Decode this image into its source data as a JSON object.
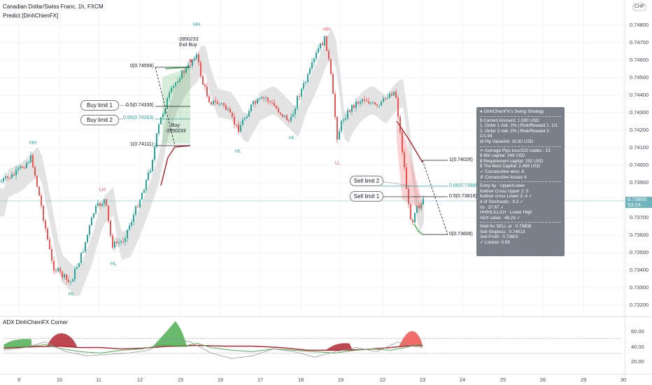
{
  "header": {
    "symbol_title": "Canadian Dollar/Swiss Franc, 1h, FXCM",
    "indicator": "Predict [DinhChienFX]"
  },
  "price_axis": {
    "currency_button": "CHF",
    "ticks": [
      "0.74800",
      "0.74700",
      "0.74600",
      "0.74500",
      "0.74400",
      "0.74300",
      "0.74200",
      "0.74100",
      "0.74000",
      "0.73900",
      "0.73700",
      "0.73600",
      "0.73500",
      "0.73400",
      "0.73300",
      "0.73200"
    ],
    "current_price": "0.73800",
    "countdown": "53:24"
  },
  "adx_pane": {
    "label": "ADX DinhChienFX Corner",
    "ticks": [
      "60.00",
      "40.00",
      "20.00"
    ]
  },
  "time_axis": {
    "ticks": [
      "9",
      "10",
      "11",
      "12",
      "15",
      "16",
      "17",
      "18",
      "19",
      "22",
      "23",
      "24",
      "25",
      "26",
      "29",
      "30"
    ]
  },
  "fib_buy": {
    "level_0": "0(0.74558)",
    "level_05": "0.5(0.74335)",
    "level_066": "0.66(0.74263)",
    "level_1": "1(0.74111)",
    "callout_1": "Buy limit 1",
    "callout_2": "Buy limit 2",
    "exit_note": "-2850233\nExit Buy",
    "buy_note": "Buy\n-2850233"
  },
  "fib_sell": {
    "level_1": "1(0.74026)",
    "level_066": "0.66(0.73888)",
    "level_05": "0.5(0.73816)",
    "level_0": "0(0.73606)",
    "callout_1": "Sell limit 1",
    "callout_2": "Sell limit 2"
  },
  "pivots": {
    "hh1": "HH",
    "hh2": "HH",
    "hh3": "HH",
    "lh1": "LH",
    "lh2": "LH",
    "hl1": "HL",
    "hl2": "HL",
    "hl3": "HL",
    "hl4": "HL",
    "ll1": "LL"
  },
  "strategy": {
    "title": "DinhChienFX's Swing Strategy",
    "lines_1": [
      "$ Current Account: 1,000 USD",
      "1. Order 1 risk: 2% | Risk/Reward 1: 1/1",
      "2. Order 2 risk: 2% | Risk/Reward 2: 1/1.94",
      "⊟ Pip Value/lot: 10.82 USD"
    ],
    "lines_2": [
      "✂ Average Pips loss/222 trades : 23",
      "$ Min capital: 249 USD",
      "$ Requirement capital: 292 USD",
      "$ The Best Capital: 2,488 USD",
      "✓ Consecutive wins: 6",
      "✗ Consecutive losses 4"
    ],
    "lines_3": [
      "Entry by : Upper/Lower",
      "Keltner Cross Upper 2: 0",
      "Keltner cross Lower 2: 4 ✓",
      "d of Stochastic : 9.3 ✓",
      "rsi : 37.67 ✓",
      "HH/HL/LL/LH : Lower High",
      "ADX value : 48.23 ✓"
    ],
    "lines_4": [
      "Wait for SELL at : 0.73808",
      "Sell Stoploss : 0.74013",
      "Sell Profit : 0.73602",
      "✓ Lotsize: 0.09"
    ]
  },
  "colors": {
    "up": "#26a69a",
    "down": "#ef5350",
    "band": "#d6d6d6",
    "line_red": "#b22833",
    "line_green": "#4caf50",
    "price_line": "#6fb3bd"
  }
}
